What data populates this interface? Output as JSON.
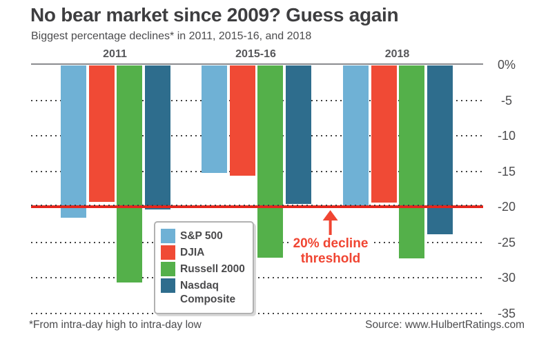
{
  "title": "No bear market since 2009? Guess again",
  "subtitle": "Biggest percentage declines* in 2011, 2015-16, and 2018",
  "footnote": "*From intra-day high to intra-day low",
  "source": "Source: www.HulbertRatings.com",
  "annotation": {
    "line1": "20% decline",
    "line2": "threshold"
  },
  "axis": {
    "ticks": [
      {
        "label": "0%",
        "value": 0
      },
      {
        "label": "-5",
        "value": -5
      },
      {
        "label": "-10",
        "value": -10
      },
      {
        "label": "-15",
        "value": -15
      },
      {
        "label": "-20",
        "value": -20
      },
      {
        "label": "-25",
        "value": -25
      },
      {
        "label": "-30",
        "value": -30
      },
      {
        "label": "-35",
        "value": -35
      }
    ]
  },
  "colors": {
    "sp500_blue": "#6fb1d5",
    "djia_red": "#f04a35",
    "russell_green": "#54b04a",
    "nasdaq_teal": "#2e6d8d",
    "threshold_line_red": "#e6251c",
    "annotation_red": "#f04532",
    "title_gray": "#3e3e40",
    "text_gray": "#4b4b4d"
  },
  "chart_data": {
    "type": "bar",
    "orientation": "vertical-negative",
    "title": "No bear market since 2009? Guess again",
    "subtitle": "Biggest percentage declines* in 2011, 2015-16, and 2018",
    "categories": [
      "2011",
      "2015-16",
      "2018"
    ],
    "series": [
      {
        "name": "S&P 500",
        "color": "#6fb1d5",
        "values": [
          -21.6,
          -15.2,
          -20.2
        ]
      },
      {
        "name": "DJIA",
        "color": "#f04a35",
        "values": [
          -19.3,
          -15.6,
          -19.4
        ]
      },
      {
        "name": "Russell 2000",
        "color": "#54b04a",
        "values": [
          -30.7,
          -27.2,
          -27.3
        ]
      },
      {
        "name": "Nasdaq Composite",
        "color": "#2e6d8d",
        "values": [
          -20.4,
          -19.6,
          -23.9
        ]
      }
    ],
    "xlabel": "",
    "ylabel": "",
    "unit": "%",
    "ylim": [
      -35,
      0
    ],
    "tick_step": 5,
    "grid": "dotted-horizontal",
    "legend_position": "inside-bottom-center",
    "threshold": {
      "value": -20,
      "label": "20% decline threshold"
    }
  }
}
